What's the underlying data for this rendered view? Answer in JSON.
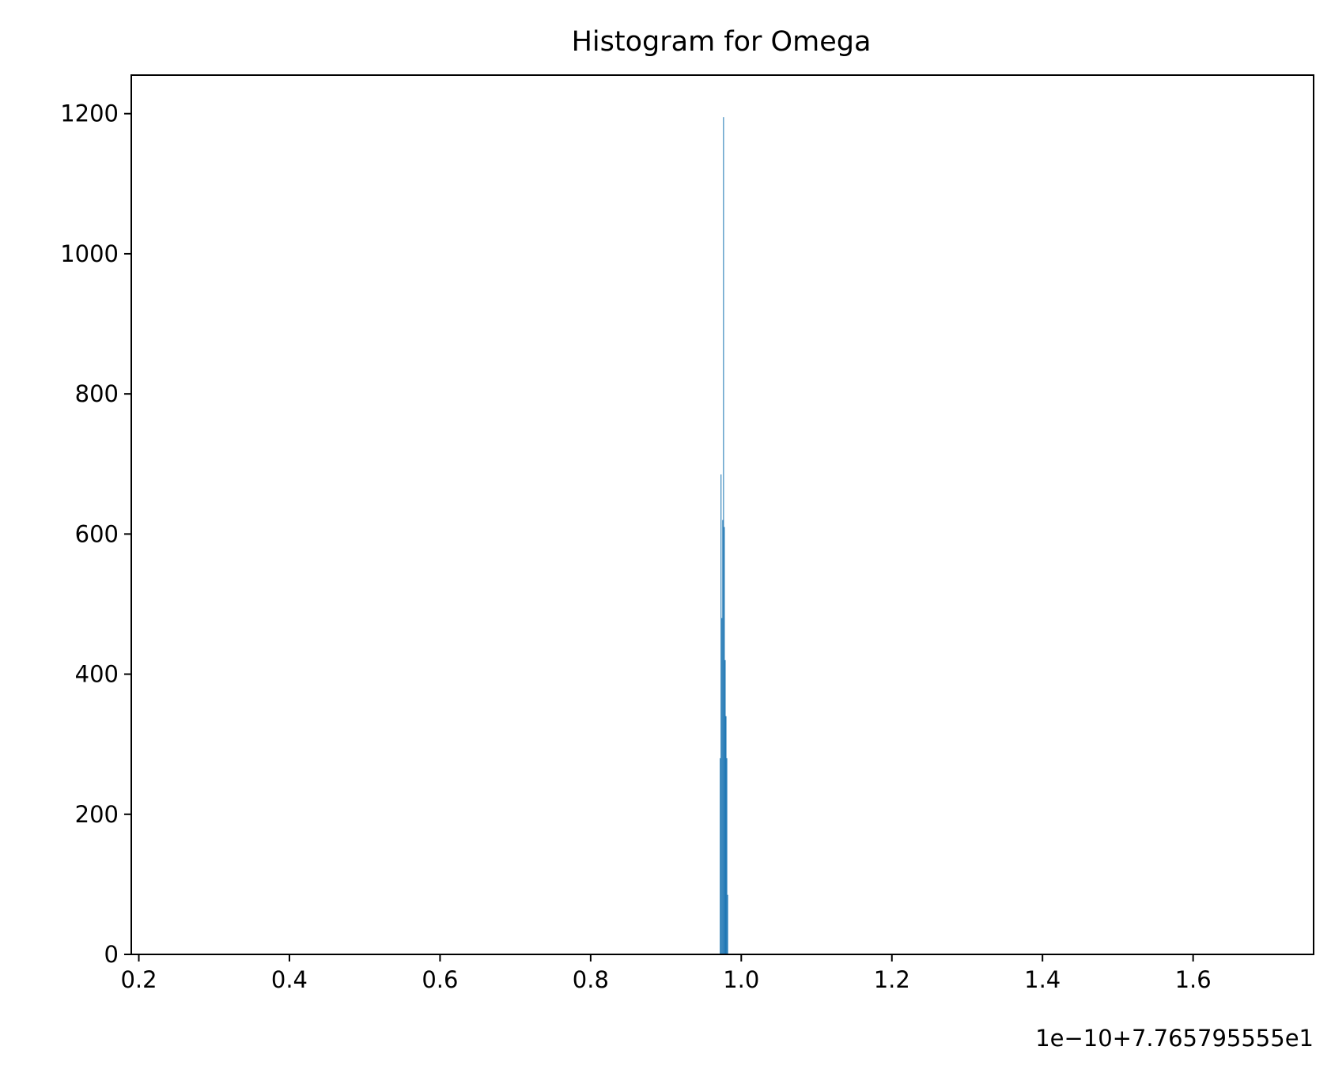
{
  "chart_data": {
    "type": "bar",
    "title": "Histogram for Omega",
    "xlabel": "",
    "ylabel": "",
    "offset_label": "1e−10+7.765795555e1",
    "xlim": [
      0.19,
      1.76
    ],
    "ylim": [
      0,
      1255
    ],
    "x_ticks": [
      0.2,
      0.4,
      0.6,
      0.8,
      1.0,
      1.2,
      1.4,
      1.6
    ],
    "x_tick_labels": [
      "0.2",
      "0.4",
      "0.6",
      "0.8",
      "1.0",
      "1.2",
      "1.4",
      "1.6"
    ],
    "y_ticks": [
      0,
      200,
      400,
      600,
      800,
      1000,
      1200
    ],
    "y_tick_labels": [
      "0",
      "200",
      "400",
      "600",
      "800",
      "1000",
      "1200"
    ],
    "bar_color": "#1f77b4",
    "bin_width": 0.0011,
    "bins": [
      {
        "x": 0.9715,
        "count": 280
      },
      {
        "x": 0.9726,
        "count": 685
      },
      {
        "x": 0.9737,
        "count": 480
      },
      {
        "x": 0.9748,
        "count": 620
      },
      {
        "x": 0.9759,
        "count": 1195
      },
      {
        "x": 0.977,
        "count": 610
      },
      {
        "x": 0.9781,
        "count": 420
      },
      {
        "x": 0.9792,
        "count": 340
      },
      {
        "x": 0.9803,
        "count": 280
      },
      {
        "x": 0.9814,
        "count": 85
      }
    ],
    "grid": false,
    "legend": "none"
  }
}
